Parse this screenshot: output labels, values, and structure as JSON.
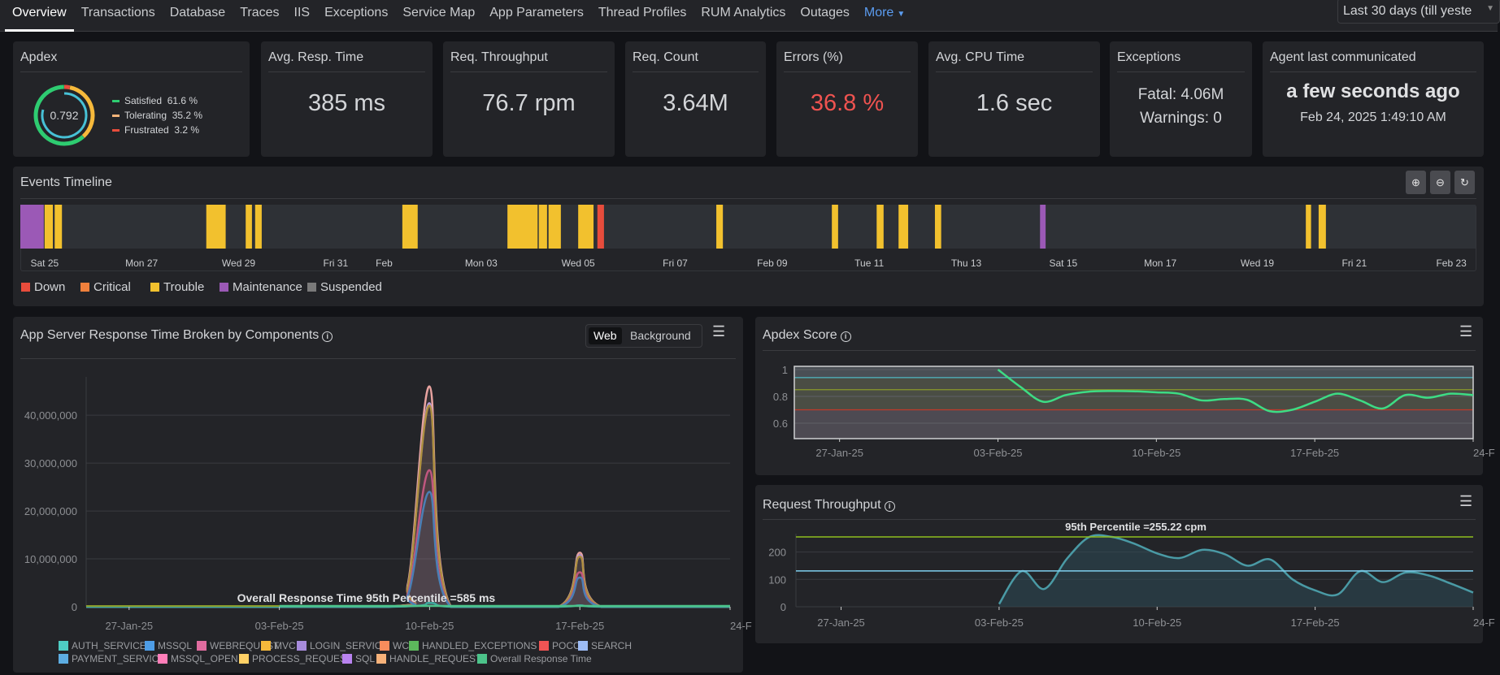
{
  "nav": {
    "tabs": [
      {
        "label": "Overview",
        "active": true
      },
      {
        "label": "Transactions"
      },
      {
        "label": "Database"
      },
      {
        "label": "Traces"
      },
      {
        "label": "IIS"
      },
      {
        "label": "Exceptions"
      },
      {
        "label": "Service Map"
      },
      {
        "label": "App Parameters"
      },
      {
        "label": "Thread Profiles"
      },
      {
        "label": "RUM Analytics"
      },
      {
        "label": "Outages"
      }
    ],
    "more_label": "More",
    "time_range": "Last 30 days (till yeste"
  },
  "metrics": {
    "apdex": {
      "title": "Apdex",
      "score": "0.792",
      "score_value": 0.792,
      "legend": [
        {
          "label": "Satisfied",
          "value": "61.6 %",
          "pct": 61.6,
          "color": "#2ecc71"
        },
        {
          "label": "Tolerating",
          "value": "35.2 %",
          "pct": 35.2,
          "color": "#f6b93b"
        },
        {
          "label": "Frustrated",
          "value": "3.2 %",
          "pct": 3.2,
          "color": "#e74c3c"
        }
      ],
      "ring_color": "#47c1d6"
    },
    "avg_resp": {
      "title": "Avg. Resp. Time",
      "value": "385 ms"
    },
    "throughput": {
      "title": "Req. Throughput",
      "value": "76.7 rpm"
    },
    "count": {
      "title": "Req. Count",
      "value": "3.64M"
    },
    "errors": {
      "title": "Errors (%)",
      "value": "36.8 %",
      "color": "#ef5350"
    },
    "cpu": {
      "title": "Avg. CPU Time",
      "value": "1.6 sec"
    },
    "exceptions": {
      "title": "Exceptions",
      "fatal": "Fatal: 4.06M",
      "warnings": "Warnings: 0"
    },
    "agent": {
      "title": "Agent last communicated",
      "relative": "a few seconds ago",
      "timestamp": "Feb 24, 2025 1:49:10 AM"
    }
  },
  "timeline": {
    "title": "Events Timeline",
    "zoom_buttons": [
      "zoom-in",
      "zoom-out",
      "zoom-reset"
    ],
    "range": [
      "2025-01-24T12:00",
      "2025-02-23T12:00"
    ],
    "ticks": [
      {
        "label": "Sat 25",
        "date": "2025-01-25"
      },
      {
        "label": "Mon 27",
        "date": "2025-01-27"
      },
      {
        "label": "Wed 29",
        "date": "2025-01-29"
      },
      {
        "label": "Fri 31",
        "date": "2025-01-31"
      },
      {
        "label": "Feb",
        "date": "2025-02-01"
      },
      {
        "label": "Mon 03",
        "date": "2025-02-03"
      },
      {
        "label": "Wed 05",
        "date": "2025-02-05"
      },
      {
        "label": "Fri 07",
        "date": "2025-02-07"
      },
      {
        "label": "Feb 09",
        "date": "2025-02-09"
      },
      {
        "label": "Tue 11",
        "date": "2025-02-11"
      },
      {
        "label": "Thu 13",
        "date": "2025-02-13"
      },
      {
        "label": "Sat 15",
        "date": "2025-02-15"
      },
      {
        "label": "Mon 17",
        "date": "2025-02-17"
      },
      {
        "label": "Wed 19",
        "date": "2025-02-19"
      },
      {
        "label": "Fri 21",
        "date": "2025-02-21"
      },
      {
        "label": "Feb 23",
        "date": "2025-02-23"
      }
    ],
    "legend": [
      {
        "label": "Down",
        "color": "#e74c3c"
      },
      {
        "label": "Critical",
        "color": "#f0803c"
      },
      {
        "label": "Trouble",
        "color": "#f2c12e"
      },
      {
        "label": "Maintenance",
        "color": "#9b59b6"
      },
      {
        "label": "Suspended",
        "color": "#7a7a7a"
      }
    ],
    "events": [
      {
        "type": "Maintenance",
        "start": "2025-01-24T12:00",
        "end": "2025-01-25T00:00"
      },
      {
        "type": "Trouble",
        "start": "2025-01-25T00:00",
        "end": "2025-01-25T04:30"
      },
      {
        "type": "Trouble",
        "start": "2025-01-25T05:00",
        "end": "2025-01-25T09:00"
      },
      {
        "type": "Trouble",
        "start": "2025-01-28T08:00",
        "end": "2025-01-28T18:00"
      },
      {
        "type": "Trouble",
        "start": "2025-01-29T03:30",
        "end": "2025-01-29T07:00"
      },
      {
        "type": "Trouble",
        "start": "2025-01-29T08:10",
        "end": "2025-01-29T11:50"
      },
      {
        "type": "Trouble",
        "start": "2025-02-01T09:00",
        "end": "2025-02-01T17:00"
      },
      {
        "type": "Trouble",
        "start": "2025-02-03T13:00",
        "end": "2025-02-04T04:20"
      },
      {
        "type": "Trouble",
        "start": "2025-02-04T04:30",
        "end": "2025-02-04T09:00"
      },
      {
        "type": "Trouble",
        "start": "2025-02-04T09:20",
        "end": "2025-02-04T15:50"
      },
      {
        "type": "Trouble",
        "start": "2025-02-05T00:00",
        "end": "2025-02-05T08:00"
      },
      {
        "type": "Down",
        "start": "2025-02-05T09:30",
        "end": "2025-02-05T13:10"
      },
      {
        "type": "Trouble",
        "start": "2025-02-07T20:20",
        "end": "2025-02-08T00:00"
      },
      {
        "type": "Trouble",
        "start": "2025-02-10T05:30",
        "end": "2025-02-10T09:00"
      },
      {
        "type": "Trouble",
        "start": "2025-02-11T03:40",
        "end": "2025-02-11T07:30"
      },
      {
        "type": "Trouble",
        "start": "2025-02-11T14:30",
        "end": "2025-02-11T19:40"
      },
      {
        "type": "Trouble",
        "start": "2025-02-12T08:30",
        "end": "2025-02-12T12:00"
      },
      {
        "type": "Maintenance",
        "start": "2025-02-14T12:30",
        "end": "2025-02-14T15:40"
      },
      {
        "type": "Trouble",
        "start": "2025-02-20T00:00",
        "end": "2025-02-20T03:00"
      },
      {
        "type": "Trouble",
        "start": "2025-02-20T06:20",
        "end": "2025-02-20T10:20"
      }
    ]
  },
  "response_panel": {
    "title": "App Server Response Time Broken by Components",
    "toggle": [
      "Web",
      "Background"
    ],
    "toggle_active": "Web"
  },
  "apdex_panel": {
    "title": "Apdex Score"
  },
  "throughput_panel": {
    "title": "Request Throughput"
  },
  "chart_data": [
    {
      "type": "area",
      "title": "App Server Response Time Broken by Components",
      "xlim": [
        "2025-01-25",
        "2025-02-24"
      ],
      "ylim": [
        0,
        48000000
      ],
      "yticks": [
        {
          "v": 0,
          "label": "0"
        },
        {
          "v": 10000000,
          "label": "10,000,000"
        },
        {
          "v": 20000000,
          "label": "20,000,000"
        },
        {
          "v": 30000000,
          "label": "30,000,000"
        },
        {
          "v": 40000000,
          "label": "40,000,000"
        }
      ],
      "xticks": [
        {
          "d": "2025-01-27",
          "label": "27-Jan-25"
        },
        {
          "d": "2025-02-03",
          "label": "03-Feb-25"
        },
        {
          "d": "2025-02-10",
          "label": "10-Feb-25"
        },
        {
          "d": "2025-02-17",
          "label": "17-Feb-25"
        },
        {
          "d": "2025-02-24",
          "label": "24-F"
        }
      ],
      "annotation": "Overall Response Time 95th Percentile =585 ms",
      "annotation_value_ms": 585,
      "legend": [
        {
          "name": "AUTH_SERVICE",
          "color": "#4ecdc4"
        },
        {
          "name": "MSSQL",
          "color": "#4e9de6"
        },
        {
          "name": "WEBREQUEST",
          "color": "#e06c9f"
        },
        {
          "name": "MVC",
          "color": "#f6b93b"
        },
        {
          "name": "LOGIN_SERVICE",
          "color": "#a78bdc"
        },
        {
          "name": "WCF",
          "color": "#f78c5c"
        },
        {
          "name": "HANDLED_EXCEPTIONS",
          "color": "#5cb85c"
        },
        {
          "name": "POCO",
          "color": "#f05454"
        },
        {
          "name": "SEARCH",
          "color": "#9dbcf5"
        },
        {
          "name": "PAYMENT_SERVICE",
          "color": "#5dade2"
        },
        {
          "name": "MSSQL_OPEN",
          "color": "#ff7eb9"
        },
        {
          "name": "PROCESS_REQUEST",
          "color": "#ffd166"
        },
        {
          "name": "SQL",
          "color": "#b983f0"
        },
        {
          "name": "HANDLE_REQUEST",
          "color": "#f7b27a"
        },
        {
          "name": "Overall Response Time",
          "color": "#4cc38a"
        }
      ],
      "series": [
        {
          "name": "HANDLE_REQUEST",
          "color": "#e8a3a0",
          "points": [
            [
              "2025-01-25",
              0
            ],
            [
              "2025-02-08",
              0
            ],
            [
              "2025-02-09",
              5000000
            ],
            [
              "2025-02-10",
              46000000
            ],
            [
              "2025-02-11",
              0
            ],
            [
              "2025-02-16",
              0
            ],
            [
              "2025-02-17",
              11300000
            ],
            [
              "2025-02-18",
              0
            ],
            [
              "2025-02-24",
              0
            ]
          ]
        },
        {
          "name": "SQL",
          "color": "#b79ad6",
          "points": [
            [
              "2025-01-25",
              0
            ],
            [
              "2025-02-08",
              0
            ],
            [
              "2025-02-09",
              4600000
            ],
            [
              "2025-02-10",
              42500000
            ],
            [
              "2025-02-11",
              0
            ],
            [
              "2025-02-16",
              0
            ],
            [
              "2025-02-17",
              10800000
            ],
            [
              "2025-02-18",
              0
            ],
            [
              "2025-02-24",
              0
            ]
          ]
        },
        {
          "name": "MVC",
          "color": "#b09040",
          "points": [
            [
              "2025-01-25",
              0
            ],
            [
              "2025-02-08",
              0
            ],
            [
              "2025-02-09",
              4500000
            ],
            [
              "2025-02-10",
              42000000
            ],
            [
              "2025-02-11",
              0
            ],
            [
              "2025-02-16",
              0
            ],
            [
              "2025-02-17",
              10500000
            ],
            [
              "2025-02-18",
              0
            ],
            [
              "2025-02-24",
              0
            ]
          ]
        },
        {
          "name": "WEBREQUEST",
          "color": "#c0577f",
          "points": [
            [
              "2025-01-25",
              0
            ],
            [
              "2025-02-08",
              0
            ],
            [
              "2025-02-09",
              3000000
            ],
            [
              "2025-02-10",
              28500000
            ],
            [
              "2025-02-11",
              0
            ],
            [
              "2025-02-16",
              0
            ],
            [
              "2025-02-17",
              7200000
            ],
            [
              "2025-02-18",
              0
            ],
            [
              "2025-02-24",
              0
            ]
          ]
        },
        {
          "name": "MSSQL",
          "color": "#4a7fb5",
          "points": [
            [
              "2025-01-25",
              0
            ],
            [
              "2025-02-08",
              0
            ],
            [
              "2025-02-09",
              2500000
            ],
            [
              "2025-02-10",
              24000000
            ],
            [
              "2025-02-11",
              0
            ],
            [
              "2025-02-16",
              0
            ],
            [
              "2025-02-17",
              6100000
            ],
            [
              "2025-02-18",
              0
            ],
            [
              "2025-02-24",
              0
            ]
          ]
        },
        {
          "name": "AUTH_SERVICE",
          "color": "#3fa9a0",
          "points": [
            [
              "2025-01-25",
              0
            ],
            [
              "2025-02-08",
              0
            ],
            [
              "2025-02-10",
              800000
            ],
            [
              "2025-02-11",
              0
            ],
            [
              "2025-02-16",
              0
            ],
            [
              "2025-02-17",
              300000
            ],
            [
              "2025-02-18",
              0
            ],
            [
              "2025-02-24",
              0
            ]
          ]
        }
      ]
    },
    {
      "type": "line",
      "title": "Apdex Score",
      "xlim": [
        "2025-01-25",
        "2025-02-24"
      ],
      "ylim": [
        0.485,
        1.024
      ],
      "yticks": [
        {
          "v": 1,
          "label": "1"
        },
        {
          "v": 0.8,
          "label": "0.8"
        },
        {
          "v": 0.6,
          "label": "0.6"
        }
      ],
      "xticks": [
        {
          "d": "2025-01-27",
          "label": "27-Jan-25"
        },
        {
          "d": "2025-02-03",
          "label": "03-Feb-25"
        },
        {
          "d": "2025-02-10",
          "label": "10-Feb-25"
        },
        {
          "d": "2025-02-17",
          "label": "17-Feb-25"
        },
        {
          "d": "2025-02-24",
          "label": "24-F"
        }
      ],
      "thresholds": [
        {
          "v": 0.94,
          "color": "#4fb8c4"
        },
        {
          "v": 0.85,
          "color": "#8a9a2a"
        },
        {
          "v": 0.7,
          "color": "#c0392b"
        }
      ],
      "bands": [
        {
          "from": 0.94,
          "to": 1.024,
          "color": "#4a4f55"
        },
        {
          "from": 0.7,
          "to": 0.94,
          "color": "#4a4d44"
        },
        {
          "from": 0.485,
          "to": 0.7,
          "color": "#4d4a52"
        }
      ],
      "series": [
        {
          "color": "#3ddc84",
          "points": [
            [
              "2025-02-03",
              1.0
            ],
            [
              "2025-02-04",
              0.87
            ],
            [
              "2025-02-05",
              0.76
            ],
            [
              "2025-02-06",
              0.81
            ],
            [
              "2025-02-07",
              0.835
            ],
            [
              "2025-02-08",
              0.84
            ],
            [
              "2025-02-09",
              0.838
            ],
            [
              "2025-02-10",
              0.83
            ],
            [
              "2025-02-11",
              0.82
            ],
            [
              "2025-02-12",
              0.77
            ],
            [
              "2025-02-13",
              0.78
            ],
            [
              "2025-02-14",
              0.775
            ],
            [
              "2025-02-15",
              0.69
            ],
            [
              "2025-02-16",
              0.7
            ],
            [
              "2025-02-17",
              0.76
            ],
            [
              "2025-02-18",
              0.82
            ],
            [
              "2025-02-19",
              0.77
            ],
            [
              "2025-02-20",
              0.71
            ],
            [
              "2025-02-21",
              0.81
            ],
            [
              "2025-02-22",
              0.79
            ],
            [
              "2025-02-23",
              0.82
            ],
            [
              "2025-02-24",
              0.81
            ]
          ]
        }
      ]
    },
    {
      "type": "area",
      "title": "Request Throughput",
      "xlim": [
        "2025-01-25",
        "2025-02-24"
      ],
      "ylim": [
        0,
        267
      ],
      "yticks": [
        {
          "v": 0,
          "label": "0"
        },
        {
          "v": 100,
          "label": "100"
        },
        {
          "v": 200,
          "label": "200"
        }
      ],
      "xticks": [
        {
          "d": "2025-01-27",
          "label": "27-Jan-25"
        },
        {
          "d": "2025-02-03",
          "label": "03-Feb-25"
        },
        {
          "d": "2025-02-10",
          "label": "10-Feb-25"
        },
        {
          "d": "2025-02-17",
          "label": "17-Feb-25"
        },
        {
          "d": "2025-02-24",
          "label": "24-F"
        }
      ],
      "annotation": "95th Percentile =255.22 cpm",
      "p95": 255.22,
      "average_line": 131,
      "series": [
        {
          "color": "#4a9aa5",
          "points": [
            [
              "2025-02-03",
              10
            ],
            [
              "2025-02-04",
              130
            ],
            [
              "2025-02-05",
              65
            ],
            [
              "2025-02-06",
              175
            ],
            [
              "2025-02-07",
              255
            ],
            [
              "2025-02-08",
              255
            ],
            [
              "2025-02-09",
              230
            ],
            [
              "2025-02-10",
              195
            ],
            [
              "2025-02-11",
              178
            ],
            [
              "2025-02-12",
              208
            ],
            [
              "2025-02-13",
              192
            ],
            [
              "2025-02-14",
              150
            ],
            [
              "2025-02-15",
              173
            ],
            [
              "2025-02-16",
              100
            ],
            [
              "2025-02-17",
              60
            ],
            [
              "2025-02-18",
              45
            ],
            [
              "2025-02-19",
              130
            ],
            [
              "2025-02-20",
              90
            ],
            [
              "2025-02-21",
              125
            ],
            [
              "2025-02-22",
              115
            ],
            [
              "2025-02-23",
              85
            ],
            [
              "2025-02-24",
              52
            ]
          ]
        }
      ]
    }
  ]
}
